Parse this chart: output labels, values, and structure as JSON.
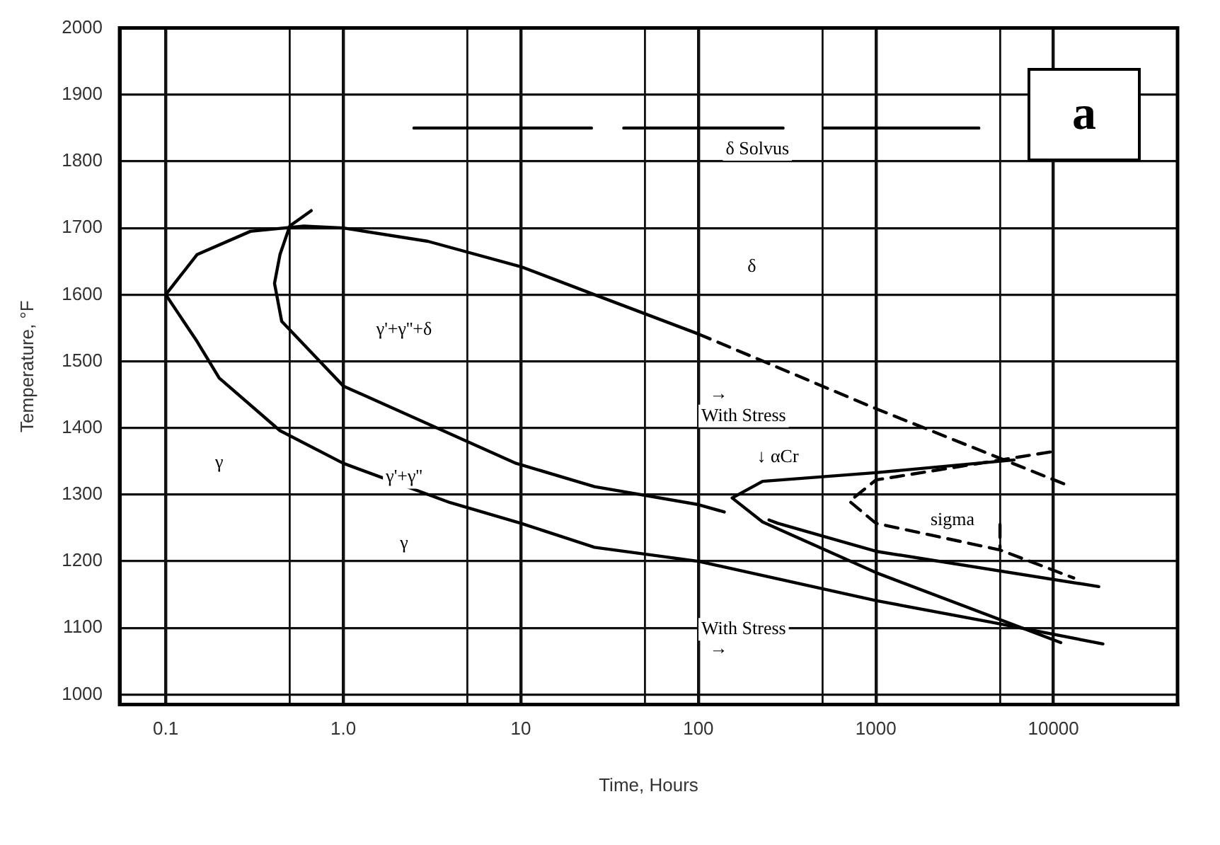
{
  "chart_data": {
    "type": "line",
    "xlabel": "Time, Hours",
    "ylabel": "Temperature, °F",
    "log": "x",
    "grid": true,
    "legend": false,
    "marker": "none",
    "xlim": [
      0.055,
      50000
    ],
    "ylim": [
      985,
      2000
    ],
    "xticks": [
      {
        "value": 0.1,
        "label": "0.1"
      },
      {
        "value": 0.5,
        "label": null
      },
      {
        "value": 1,
        "label": "1.0"
      },
      {
        "value": 5,
        "label": null
      },
      {
        "value": 10,
        "label": "10"
      },
      {
        "value": 50,
        "label": null
      },
      {
        "value": 100,
        "label": "100"
      },
      {
        "value": 500,
        "label": null
      },
      {
        "value": 1000,
        "label": "1000"
      },
      {
        "value": 5000,
        "label": null
      },
      {
        "value": 10000,
        "label": "10000"
      }
    ],
    "yticks": [
      1000,
      1100,
      1200,
      1300,
      1400,
      1500,
      1600,
      1700,
      1800,
      1900,
      2000
    ],
    "series": [
      {
        "type": "line",
        "color": "#000000",
        "line_style": "solid",
        "x": [
          100,
          26,
          10,
          3,
          1,
          0.6,
          0.3,
          0.15,
          0.1,
          0.15,
          0.2,
          0.44,
          1,
          4,
          10,
          26,
          100,
          1000,
          4400,
          19000
        ],
        "values": [
          1541,
          1600,
          1642,
          1680,
          1700,
          1703,
          1695,
          1660,
          1600,
          1530,
          1475,
          1396,
          1347,
          1288,
          1257,
          1221,
          1200,
          1141,
          1109,
          1076
        ]
      },
      {
        "type": "line",
        "color": "#000000",
        "line_style": "dashed",
        "x": [
          100,
          1000,
          12000
        ],
        "values": [
          1541,
          1429,
          1314
        ]
      },
      {
        "type": "line",
        "color": "#000000",
        "line_style": "solid",
        "x": [
          0.66,
          0.5,
          0.44,
          0.41,
          0.45,
          1,
          9.4,
          26,
          100,
          140
        ],
        "values": [
          1726,
          1703,
          1660,
          1617,
          1560,
          1463,
          1347,
          1312,
          1285,
          1274
        ]
      },
      {
        "type": "line",
        "color": "#000000",
        "line_style": "solid",
        "x": [
          6000,
          1000,
          230,
          155,
          230,
          1000,
          11000
        ],
        "values": [
          1352,
          1333,
          1320,
          1295,
          1259,
          1183,
          1078
        ]
      },
      {
        "type": "line",
        "color": "#000000",
        "line_style": "solid",
        "x": [
          250,
          280,
          1000,
          18000
        ],
        "values": [
          1262,
          1257,
          1215,
          1162
        ]
      },
      {
        "type": "line",
        "color": "#000000",
        "line_style": "dashed",
        "x": [
          9600,
          1000,
          710,
          1000,
          5000,
          13000
        ],
        "values": [
          1364,
          1322,
          1290,
          1257,
          1217,
          1175
        ]
      },
      {
        "type": "line",
        "color": "#000000",
        "line_style": "dashed",
        "x": [
          5000,
          5000
        ],
        "values": [
          1255,
          1220
        ]
      },
      {
        "type": "line",
        "color": "#000000",
        "line_style": "solid",
        "x": [
          2.5,
          25,
          30,
          38,
          300,
          400,
          510,
          3800
        ],
        "values": [
          1850,
          1850,
          null,
          1850,
          1850,
          null,
          1850,
          1850
        ]
      }
    ],
    "annotations": [
      "δ Solvus",
      "δ",
      "γ'+γ''+δ",
      "γ",
      "γ'+γ''",
      "γ",
      "→",
      "With Stress",
      "↓ αCr",
      "sigma",
      "With Stress",
      "→",
      "a"
    ]
  }
}
